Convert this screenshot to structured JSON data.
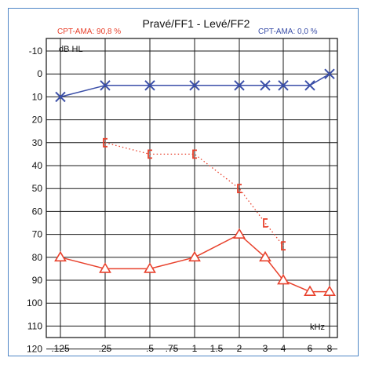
{
  "colors": {
    "right": "#e8412c",
    "left": "#3b4fa8",
    "frame": "#4f86c6"
  },
  "chart_data": {
    "type": "line",
    "title": "Pravé/FF1 - Levé/FF2",
    "cpt_left": "CPT-AMA: 90,8 %",
    "cpt_right": "CPT-AMA: 0,0 %",
    "ylabel": "dB HL",
    "xlabel": "kHz",
    "ylim": [
      -10,
      120
    ],
    "y_ticks": [
      -10,
      0,
      10,
      20,
      30,
      40,
      50,
      60,
      70,
      80,
      90,
      100,
      110,
      120
    ],
    "x_ticks": [
      ".125",
      ".25",
      ".5",
      ".75",
      "1",
      "1.5",
      "2",
      "3",
      "4",
      "6",
      "8"
    ],
    "grid": true,
    "series": [
      {
        "marker": "cross",
        "color": "#3b4fa8",
        "line": "solid",
        "points": [
          {
            "x": ".125",
            "y": 10
          },
          {
            "x": ".25",
            "y": 5
          },
          {
            "x": ".5",
            "y": 5
          },
          {
            "x": "1",
            "y": 5
          },
          {
            "x": "2",
            "y": 5
          },
          {
            "x": "3",
            "y": 5
          },
          {
            "x": "4",
            "y": 5
          },
          {
            "x": "6",
            "y": 5
          },
          {
            "x": "8",
            "y": 0
          }
        ]
      },
      {
        "marker": "bracket",
        "color": "#e8412c",
        "line": "dotted",
        "points": [
          {
            "x": ".25",
            "y": 30
          },
          {
            "x": ".5",
            "y": 35
          },
          {
            "x": "1",
            "y": 35
          },
          {
            "x": "2",
            "y": 50
          },
          {
            "x": "3",
            "y": 65
          },
          {
            "x": "4",
            "y": 75
          }
        ]
      },
      {
        "marker": "triangle",
        "color": "#e8412c",
        "line": "solid",
        "points": [
          {
            "x": ".125",
            "y": 80
          },
          {
            "x": ".25",
            "y": 85
          },
          {
            "x": ".5",
            "y": 85
          },
          {
            "x": "1",
            "y": 80
          },
          {
            "x": "2",
            "y": 70
          },
          {
            "x": "3",
            "y": 80
          },
          {
            "x": "4",
            "y": 90
          },
          {
            "x": "6",
            "y": 95
          },
          {
            "x": "8",
            "y": 95
          }
        ]
      }
    ]
  }
}
